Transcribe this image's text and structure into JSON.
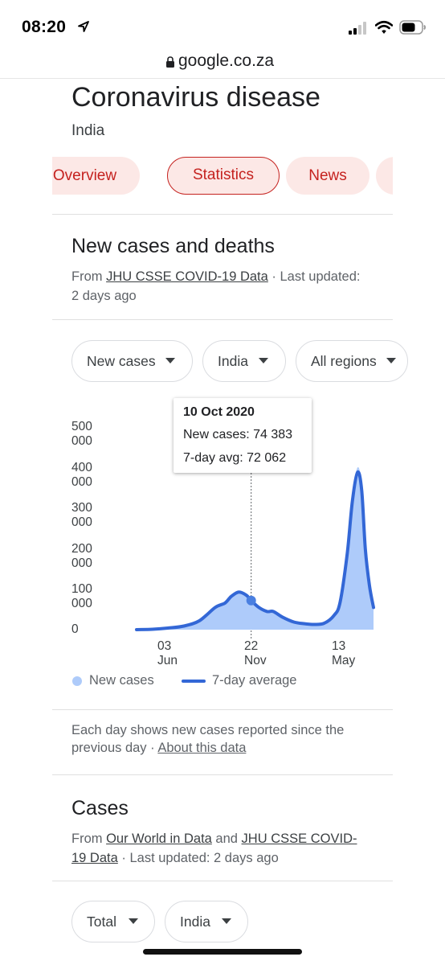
{
  "status_bar": {
    "time": "08:20"
  },
  "browser": {
    "domain": "google.co.za"
  },
  "header": {
    "title": "Coronavirus disease",
    "subtitle": "India"
  },
  "tabs": [
    {
      "label": "Overview"
    },
    {
      "label": "Statistics",
      "active": true
    },
    {
      "label": "News"
    }
  ],
  "new_cases_section": {
    "title": "New cases and deaths",
    "source_prefix": "From ",
    "source_link": "JHU CSSE COVID-19 Data",
    "source_suffix": " · Last updated:",
    "updated": "2 days ago",
    "filters": [
      "New cases",
      "India",
      "All regions"
    ],
    "tooltip": {
      "date": "10 Oct 2020",
      "new_cases": "New cases: 74 383",
      "avg": "7-day avg: 72 062"
    },
    "legend": {
      "bars": "New cases",
      "line": "7-day average"
    },
    "note": "Each day shows new cases reported since the previous day",
    "note_sep": " · ",
    "note_link": "About this data"
  },
  "cases_section": {
    "title": "Cases",
    "from": "From ",
    "link1": "Our World in Data",
    "and": " and ",
    "link2_a": "JHU CSSE COVID-",
    "link2_b": "19 Data",
    "updated": " · Last updated: 2 days ago",
    "filters": [
      "Total",
      "India"
    ]
  },
  "colors": {
    "accent": "#c5221f",
    "tab_bg": "#fce8e6",
    "area": "#aecbfa",
    "line": "#3367d6"
  },
  "chart_data": {
    "type": "area",
    "title": "",
    "y_ticks": [
      "500 000",
      "400 000",
      "300 000",
      "200 000",
      "100 000",
      "0"
    ],
    "x_ticks": [
      "03 Jun",
      "22 Nov",
      "13 May"
    ],
    "ylim": [
      0,
      500000
    ],
    "series": [
      {
        "name": "New cases",
        "kind": "area"
      },
      {
        "name": "7-day average",
        "kind": "line"
      }
    ],
    "x": [
      "2020-03-01",
      "2020-04-01",
      "2020-05-01",
      "2020-06-01",
      "2020-07-01",
      "2020-08-01",
      "2020-08-20",
      "2020-09-01",
      "2020-09-16",
      "2020-10-01",
      "2020-10-10",
      "2020-10-25",
      "2020-11-10",
      "2020-11-22",
      "2020-12-10",
      "2021-01-01",
      "2021-01-20",
      "2021-02-10",
      "2021-03-01",
      "2021-03-20",
      "2021-04-01",
      "2021-04-15",
      "2021-04-25",
      "2021-05-05",
      "2021-05-13",
      "2021-05-20",
      "2021-05-28",
      "2021-06-05"
    ],
    "values": [
      0,
      1000,
      4000,
      9000,
      22000,
      55000,
      66000,
      82000,
      93000,
      85000,
      72000,
      55000,
      45000,
      45000,
      31000,
      19000,
      15000,
      13000,
      16000,
      35000,
      68000,
      190000,
      320000,
      390000,
      345000,
      200000,
      110000,
      55000
    ],
    "highlight": {
      "date": "10 Oct 2020",
      "new_cases": 74383,
      "avg": 72062
    }
  }
}
